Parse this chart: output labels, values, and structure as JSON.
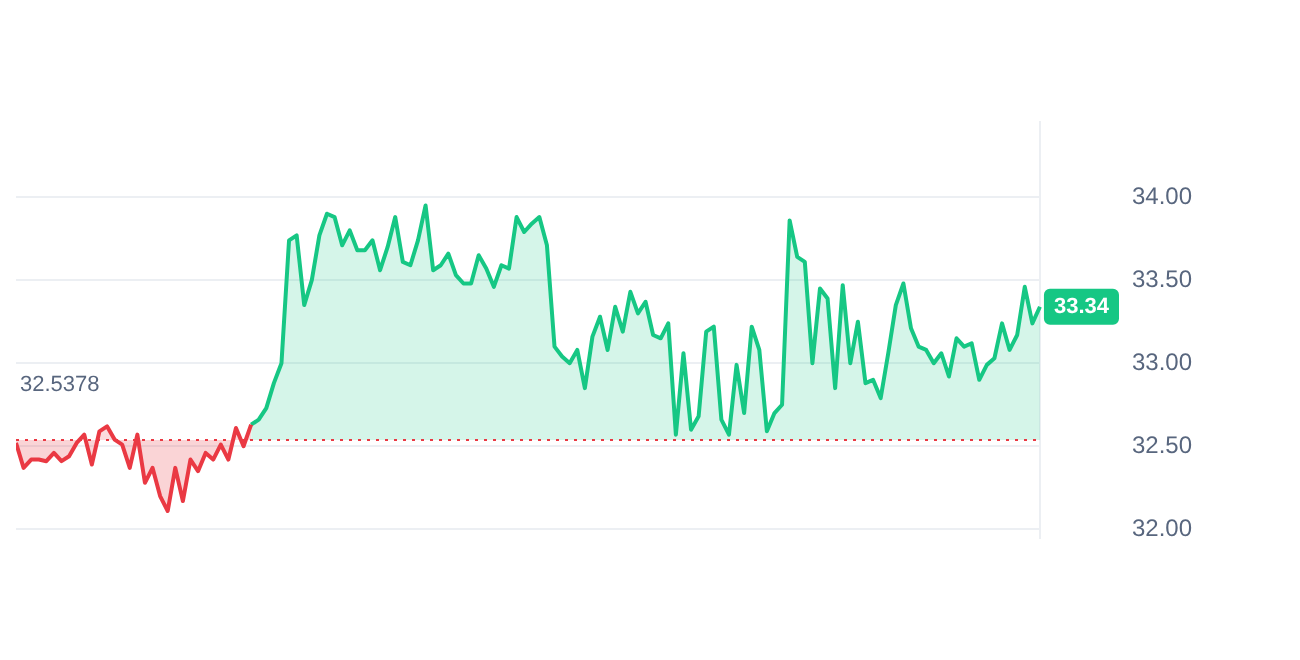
{
  "chart_data": {
    "type": "area",
    "categories": [
      null,
      null,
      null,
      null,
      null,
      null,
      null,
      null,
      null,
      null,
      null,
      null,
      null,
      null,
      null,
      null,
      null,
      null,
      null,
      null,
      null,
      null,
      null,
      null,
      null,
      null,
      null,
      null,
      null,
      null,
      null,
      null,
      null,
      null,
      null,
      null,
      null,
      null,
      null,
      null,
      null,
      null,
      null,
      null,
      null,
      null,
      null,
      null,
      null,
      null,
      null,
      null,
      null,
      null,
      null,
      null,
      null,
      null,
      null,
      null,
      null,
      null,
      null,
      null,
      null,
      null,
      null,
      null,
      null,
      null,
      null,
      null,
      null,
      null,
      null,
      null,
      null,
      null,
      null,
      null,
      null,
      null,
      null,
      null,
      null,
      null,
      null,
      null,
      null,
      null,
      null,
      null,
      null,
      null,
      null,
      null,
      null,
      null,
      null,
      null,
      null,
      null,
      null,
      null,
      null,
      null,
      null,
      null,
      null,
      null,
      null,
      null,
      null,
      null,
      null,
      null,
      null,
      null,
      null,
      null,
      null,
      null,
      null,
      null,
      null,
      null,
      null,
      null,
      null,
      null,
      null,
      null,
      null,
      null,
      null,
      null
    ],
    "series": [
      {
        "color": "#ea3943",
        "values": [
          32.52,
          32.37,
          32.42,
          32.42,
          32.41,
          32.46,
          32.41,
          32.44,
          32.52,
          32.57,
          32.39,
          32.59,
          32.62,
          32.54,
          32.51,
          32.37,
          32.57,
          32.28,
          32.37,
          32.2,
          32.11,
          32.37,
          32.17,
          32.42,
          32.35,
          32.46,
          32.42,
          32.51,
          32.42,
          32.61,
          32.5,
          32.63,
          null,
          null,
          null,
          null,
          null,
          null,
          null,
          null,
          null,
          null,
          null,
          null,
          null,
          null,
          null,
          null,
          null,
          null,
          null,
          null,
          null,
          null,
          null,
          null,
          null,
          null,
          null,
          null,
          null,
          null,
          null,
          null,
          null,
          null,
          null,
          null,
          null,
          null,
          null,
          null,
          null,
          null,
          null,
          null,
          null,
          null,
          null,
          null,
          null,
          null,
          null,
          null,
          null,
          null,
          null,
          null,
          null,
          null,
          null,
          null,
          null,
          null,
          null,
          null,
          null,
          null,
          null,
          null,
          null,
          null,
          null,
          null,
          null,
          null,
          null,
          null,
          null,
          null,
          null,
          null,
          null,
          null,
          null,
          null,
          null,
          null,
          null,
          null,
          null,
          null,
          null,
          null,
          null,
          null,
          null,
          null,
          null,
          null,
          null,
          null,
          null,
          null,
          null,
          null
        ]
      },
      {
        "color": "#16c784",
        "values": [
          null,
          null,
          null,
          null,
          null,
          null,
          null,
          null,
          null,
          null,
          null,
          null,
          null,
          null,
          null,
          null,
          null,
          null,
          null,
          null,
          null,
          null,
          null,
          null,
          null,
          null,
          null,
          null,
          null,
          null,
          null,
          32.63,
          32.66,
          32.73,
          32.88,
          33.0,
          33.74,
          33.77,
          33.35,
          33.5,
          33.77,
          33.9,
          33.88,
          33.71,
          33.8,
          33.68,
          33.68,
          33.74,
          33.56,
          33.7,
          33.88,
          33.61,
          33.59,
          33.74,
          33.95,
          33.56,
          33.59,
          33.66,
          33.53,
          33.48,
          33.48,
          33.65,
          33.57,
          33.46,
          33.59,
          33.57,
          33.88,
          33.79,
          33.84,
          33.88,
          33.71,
          33.1,
          33.04,
          33.0,
          33.08,
          32.85,
          33.16,
          33.28,
          33.08,
          33.34,
          33.19,
          33.43,
          33.3,
          33.37,
          33.17,
          33.15,
          33.24,
          32.57,
          33.06,
          32.6,
          32.68,
          33.19,
          33.22,
          32.66,
          32.57,
          32.99,
          32.7,
          33.22,
          33.08,
          32.59,
          32.7,
          32.75,
          33.86,
          33.64,
          33.61,
          33.0,
          33.45,
          33.39,
          32.85,
          33.47,
          33.0,
          33.25,
          32.88,
          32.9,
          32.79,
          33.06,
          33.35,
          33.48,
          33.21,
          33.1,
          33.08,
          33.0,
          33.06,
          32.92,
          33.15,
          33.1,
          33.12,
          32.9,
          32.99,
          33.03,
          33.24,
          33.08,
          33.17,
          33.46,
          33.24,
          33.34
        ]
      }
    ],
    "ylim": [
      31.95,
      34.45
    ],
    "yticks": [
      {
        "value": 32,
        "label": "32.00"
      },
      {
        "value": 32.5,
        "label": "32.50"
      },
      {
        "value": 33,
        "label": "33.00"
      },
      {
        "value": 33.5,
        "label": "33.50"
      },
      {
        "value": 34,
        "label": "34.00"
      }
    ],
    "grid": "y",
    "legend": false,
    "marker": "none",
    "tick_labels": "y",
    "ref_lines": [
      {
        "axis": "y",
        "value": 32.5378,
        "label": "32.5378",
        "color": "#ea3943",
        "line_style": "dotted"
      }
    ],
    "annotations": [
      "33.34"
    ]
  }
}
